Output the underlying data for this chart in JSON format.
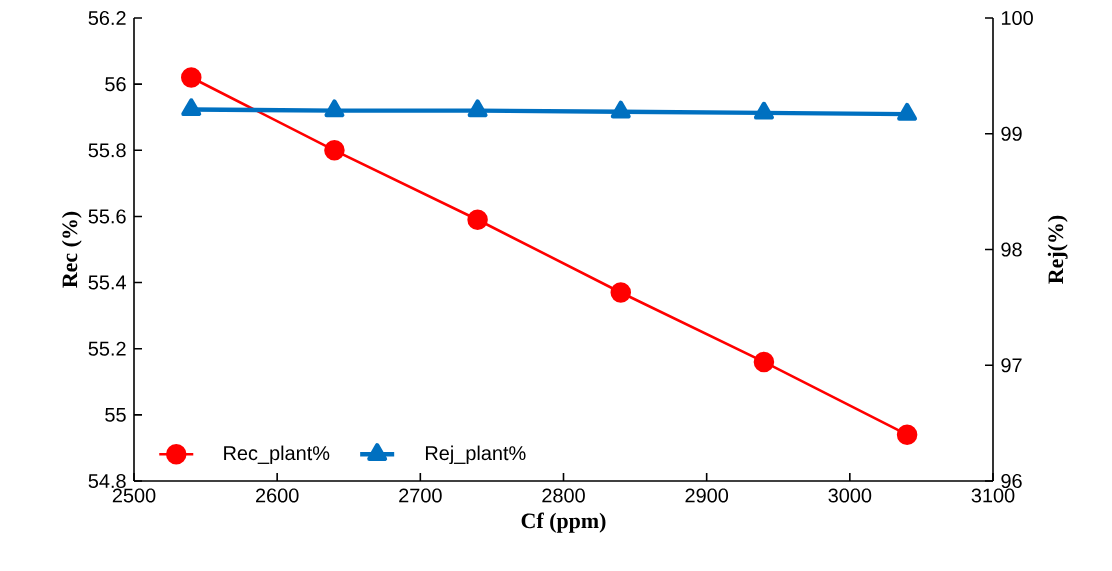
{
  "chart_data": {
    "type": "line",
    "xlabel": "Cf (ppm)",
    "ylabel": "Rec (%)",
    "y2label": "Rej(%)",
    "x": [
      2540,
      2640,
      2740,
      2840,
      2940,
      3040
    ],
    "series": [
      {
        "name": "Rec_plant%",
        "color": "#ff0000",
        "marker": "circle",
        "values": [
          56.02,
          55.8,
          55.59,
          55.37,
          55.16,
          54.94
        ]
      },
      {
        "name": "Rej_plant%",
        "color": "#0070c0",
        "marker": "triangle",
        "axis": "y2",
        "values": [
          99.21,
          99.2,
          99.2,
          99.19,
          99.18,
          99.17
        ]
      }
    ],
    "xlim": [
      2500,
      3100
    ],
    "xticks": [
      2500,
      2600,
      2700,
      2800,
      2900,
      3000,
      3100
    ],
    "ylim": [
      54.8,
      56.2
    ],
    "yticks": [
      54.8,
      55,
      55.2,
      55.4,
      55.6,
      55.8,
      56,
      56.2
    ],
    "y2lim": [
      96,
      100
    ],
    "y2ticks": [
      96,
      97,
      98,
      99,
      100
    ],
    "legend": "bottom left",
    "grid": false
  }
}
